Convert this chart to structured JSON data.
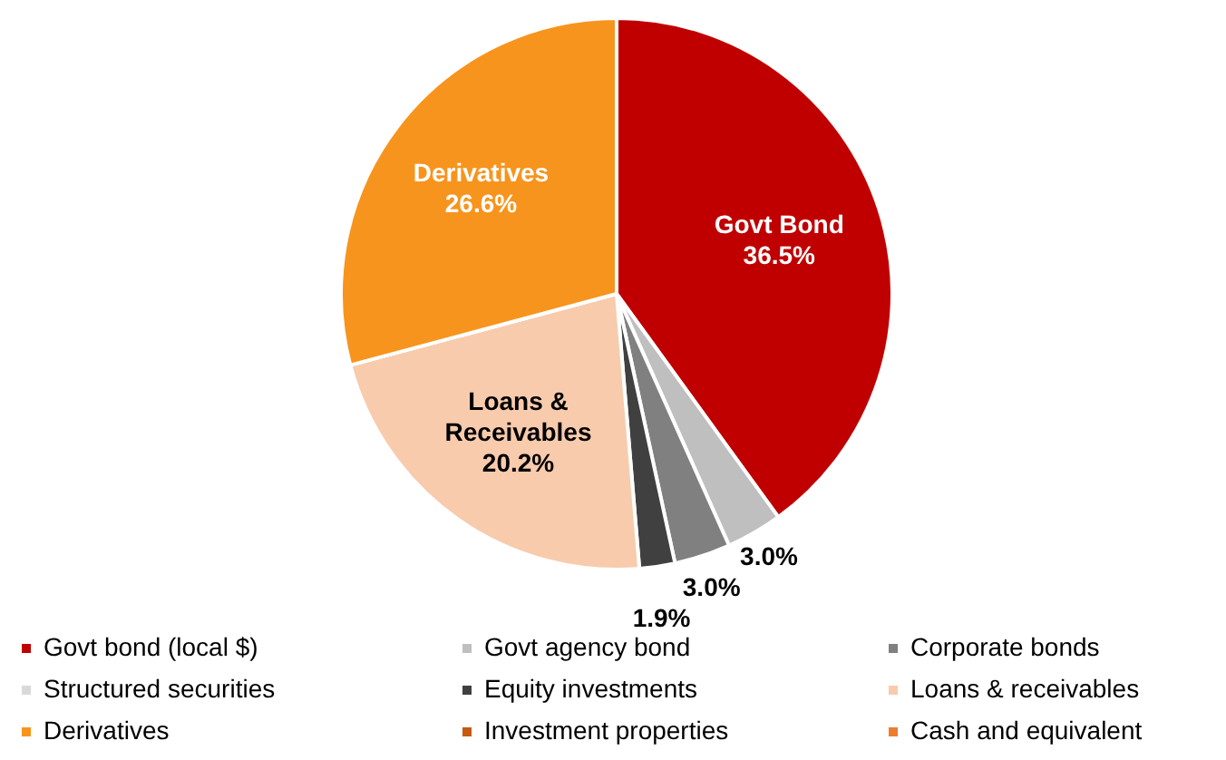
{
  "chart_data": {
    "type": "pie",
    "categories": [
      "Govt bond (local $)",
      "Govt agency bond",
      "Corporate bonds",
      "Structured securities",
      "Equity investments",
      "Loans & receivables",
      "Derivatives",
      "Investment properties",
      "Cash and equivalent"
    ],
    "values": [
      36.5,
      3.0,
      3.0,
      null,
      1.9,
      20.2,
      26.6,
      null,
      null
    ],
    "value_labels": [
      "36.5%",
      "3.0%",
      "3.0%",
      null,
      "1.9%",
      "20.2%",
      "26.6%",
      null,
      null
    ],
    "colors": [
      "#c00000",
      "#bfbfbf",
      "#808080",
      "#d9d9d9",
      "#404040",
      "#f8cbad",
      "#f7941d",
      "#c55a11",
      "#ed7d31"
    ],
    "annotations": [
      {
        "text": "Govt Bond",
        "x": "Govt bond (local $)"
      },
      {
        "text": "Loans & Receivables",
        "x": "Loans & receivables"
      },
      {
        "text": "Derivatives",
        "x": "Derivatives"
      }
    ],
    "legend": "bottom"
  }
}
